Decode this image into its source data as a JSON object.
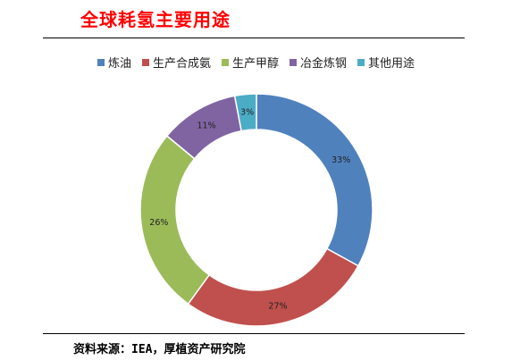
{
  "title": "全球耗氢主要用途",
  "source": "资料来源：IEA，厚植资产研究院",
  "chart_data": {
    "type": "pie",
    "subtype": "donut",
    "legend_position": "top",
    "slices": [
      {
        "label": "炼油",
        "value": 33,
        "value_label": "33%",
        "color": "#4f81bd"
      },
      {
        "label": "生产合成氨",
        "value": 27,
        "value_label": "27%",
        "color": "#c0504d"
      },
      {
        "label": "生产甲醇",
        "value": 26,
        "value_label": "26%",
        "color": "#9bbb59"
      },
      {
        "label": "冶金炼钢",
        "value": 11,
        "value_label": "11%",
        "color": "#8064a2"
      },
      {
        "label": "其他用途",
        "value": 3,
        "value_label": "3%",
        "color": "#4bacc6"
      }
    ]
  }
}
